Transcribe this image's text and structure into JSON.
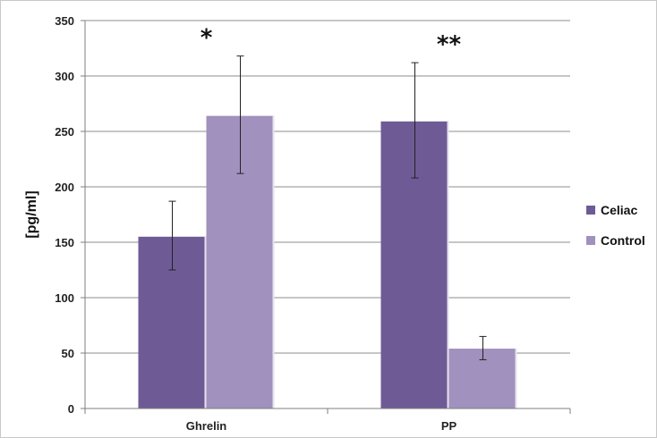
{
  "chart_data": {
    "type": "bar",
    "categories": [
      "Ghrelin",
      "PP"
    ],
    "series": [
      {
        "name": "Celiac",
        "color": "#6e5b96",
        "values": [
          155,
          259
        ],
        "error_low": [
          125,
          208
        ],
        "error_high": [
          187,
          312
        ]
      },
      {
        "name": "Control",
        "color": "#a191be",
        "values": [
          264,
          54
        ],
        "error_low": [
          212,
          44
        ],
        "error_high": [
          318,
          65
        ]
      }
    ],
    "significance": [
      "*",
      "**"
    ],
    "ylabel": "[pg/ml]",
    "ylim": [
      0,
      350
    ],
    "yticks": [
      0,
      50,
      100,
      150,
      200,
      250,
      300,
      350
    ],
    "grid": true,
    "legend_position": "right"
  }
}
